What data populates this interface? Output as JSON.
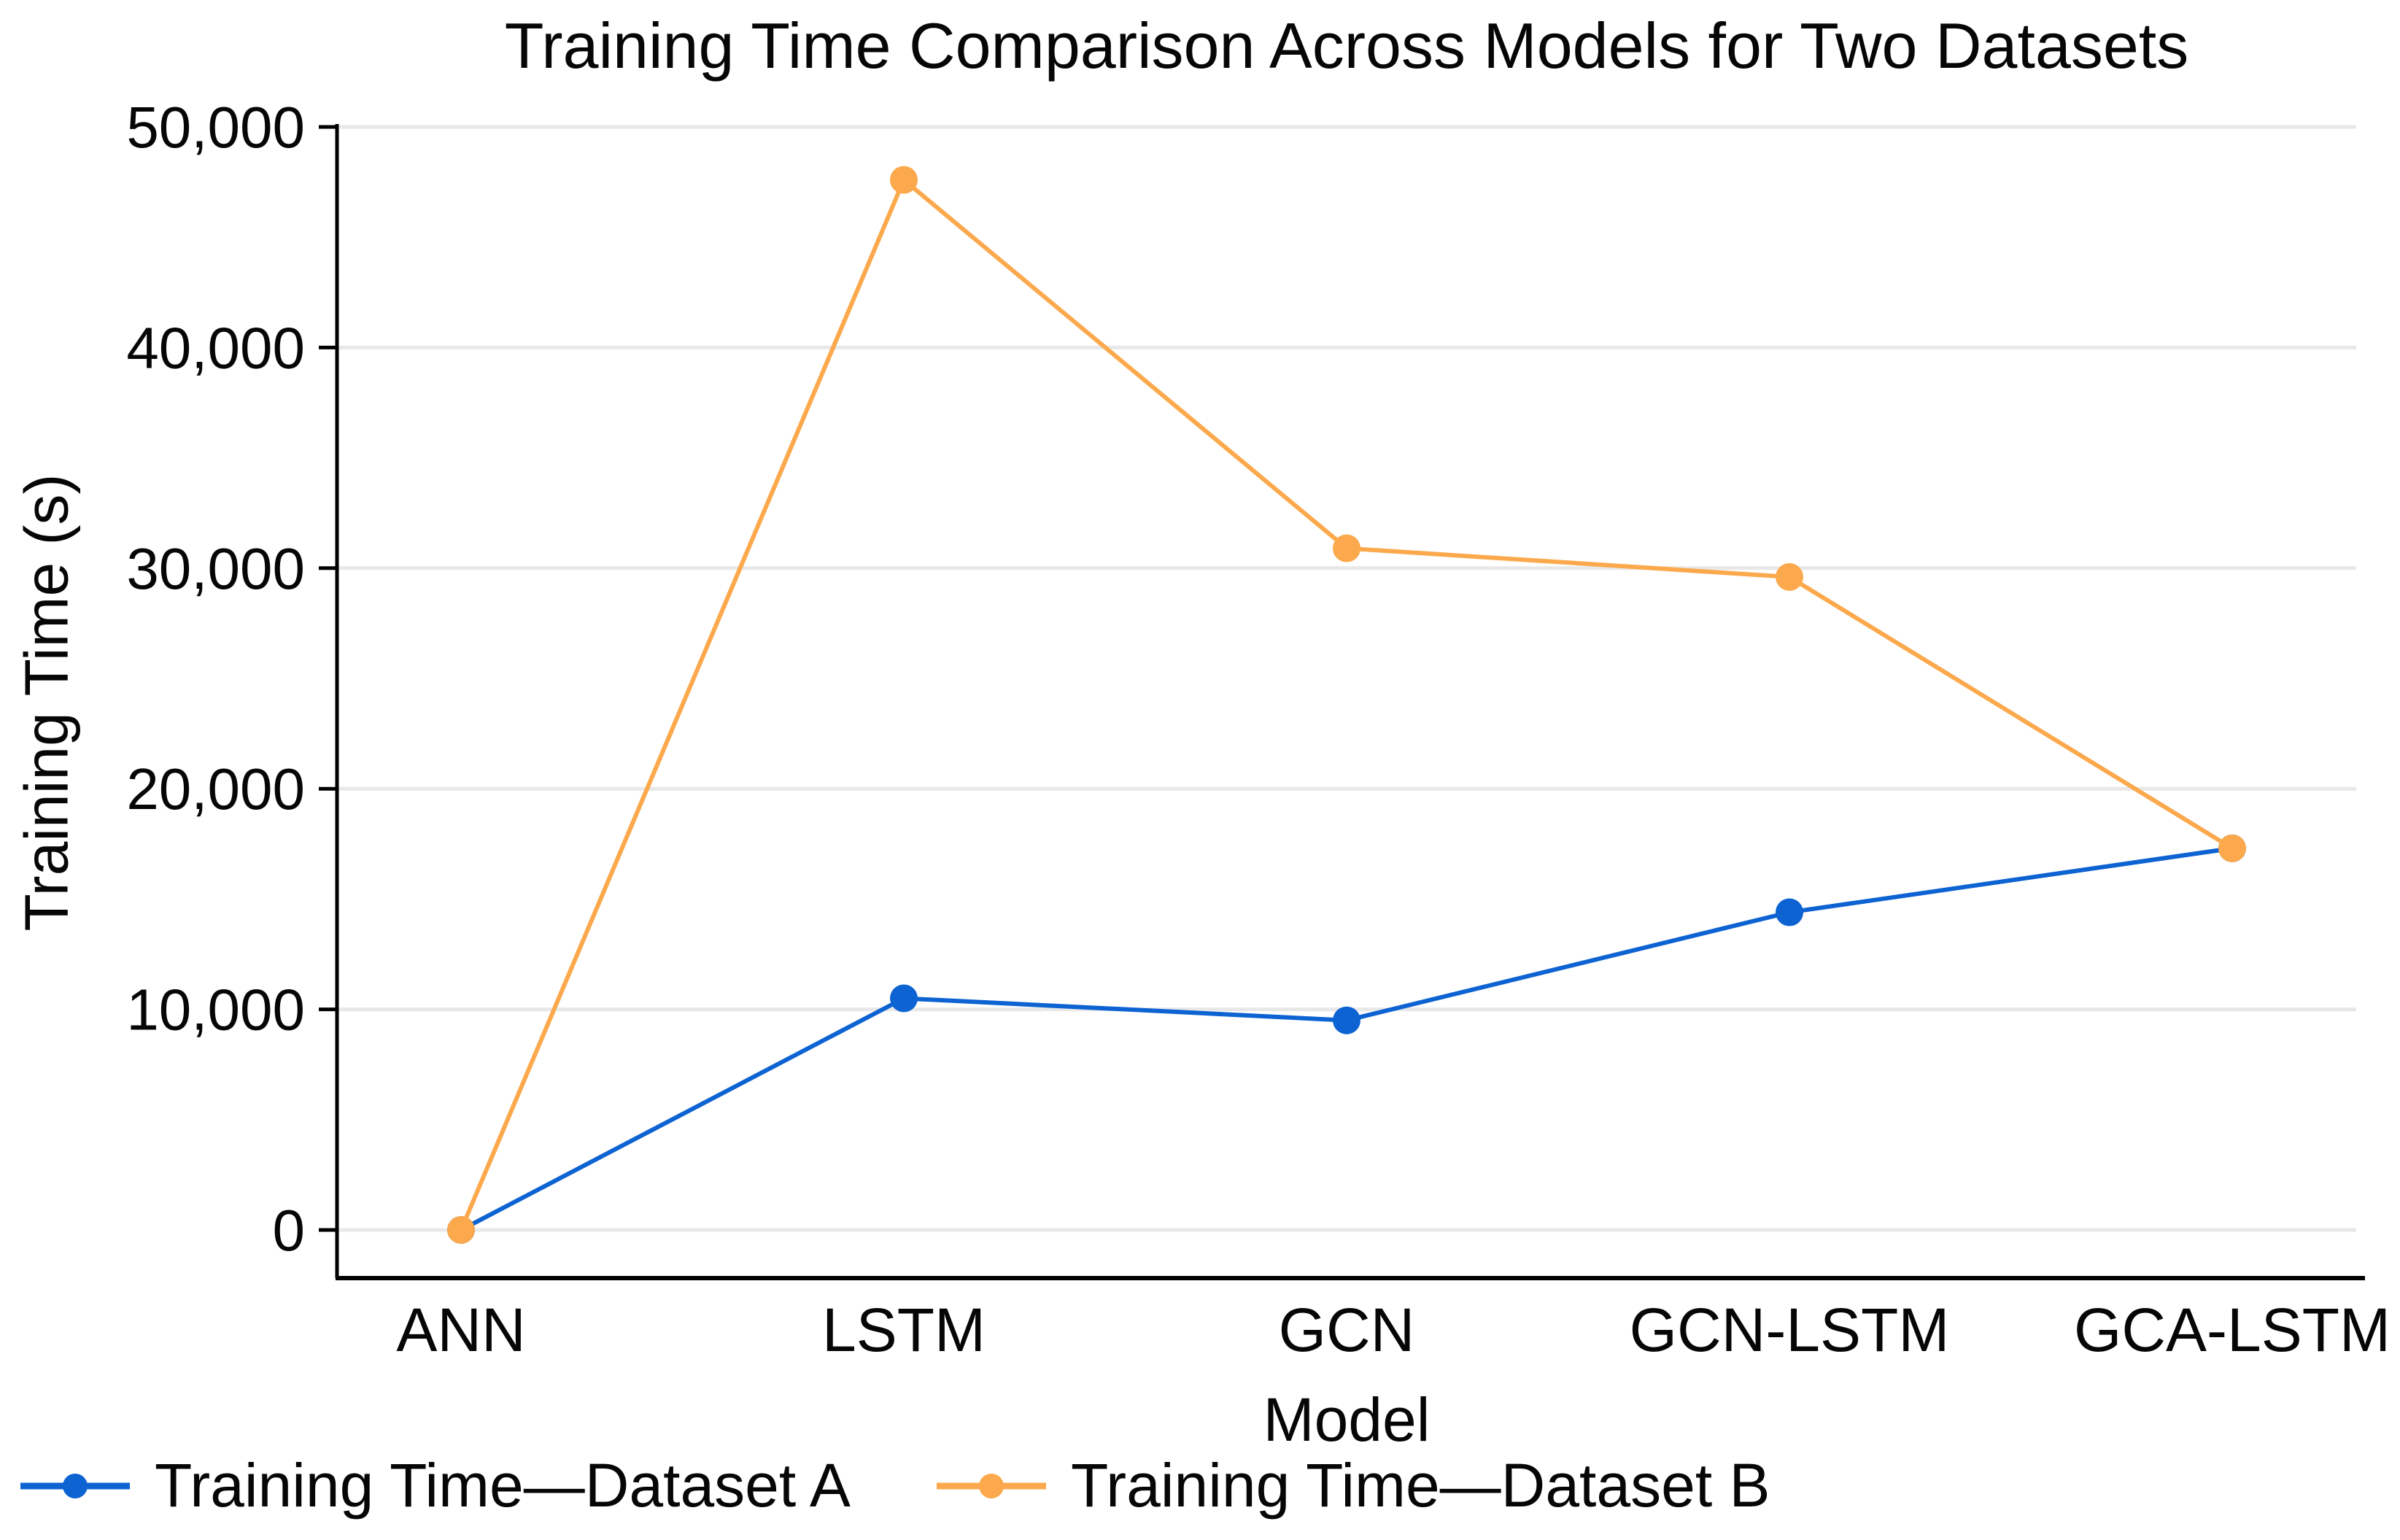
{
  "chart_data": {
    "type": "line",
    "title": "Training Time Comparison Across Models for Two Datasets",
    "xlabel": "Model",
    "ylabel": "Training Time (s)",
    "categories": [
      "ANN",
      "LSTM",
      "GCN",
      "GCN-LSTM",
      "GCA-LSTM"
    ],
    "series": [
      {
        "name": "Training Time—Dataset A",
        "color": "#0d63d2",
        "values": [
          0,
          10500,
          9500,
          14400,
          17300
        ]
      },
      {
        "name": "Training Time—Dataset B",
        "color": "#fba94c",
        "values": [
          0,
          47600,
          30900,
          29600,
          17300
        ]
      }
    ],
    "ylim": [
      0,
      50000
    ],
    "y_ticks": [
      0,
      10000,
      20000,
      30000,
      40000,
      50000
    ],
    "y_tick_labels": [
      "0",
      "10,000",
      "20,000",
      "30,000",
      "40,000",
      "50,000"
    ],
    "grid": "horizontal gridlines only",
    "legend_position": "bottom-left",
    "colors": {
      "background": "#ffffff",
      "gridline": "#e8e8e8",
      "axis": "#000000",
      "text": "#060606"
    }
  }
}
